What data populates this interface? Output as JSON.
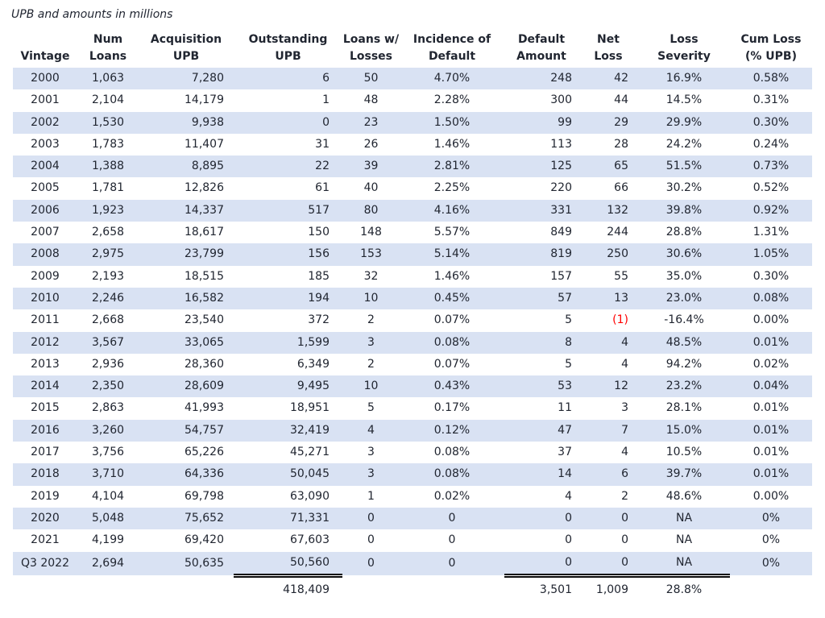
{
  "title": "UPB and amounts in millions",
  "colors": {
    "band": "#d9e2f3",
    "text": "#212631",
    "negative_value": "#ff0000"
  },
  "chart_data": {
    "type": "table",
    "columns": [
      "Vintage",
      "Num\nLoans",
      "Acquisition\nUPB",
      "Outstanding\nUPB",
      "Loans w/\nLosses",
      "Incidence of\nDefault",
      "Default\nAmount",
      "Net\nLoss",
      "Loss\nSeverity",
      "Cum Loss\n(% UPB)"
    ],
    "column_aligns": [
      "center",
      "center",
      "right",
      "right",
      "center",
      "center",
      "right",
      "right",
      "center",
      "center"
    ],
    "rows": [
      [
        "2000",
        "1,063",
        "7,280",
        "6",
        "50",
        "4.70%",
        "248",
        "42",
        "16.9%",
        "0.58%"
      ],
      [
        "2001",
        "2,104",
        "14,179",
        "1",
        "48",
        "2.28%",
        "300",
        "44",
        "14.5%",
        "0.31%"
      ],
      [
        "2002",
        "1,530",
        "9,938",
        "0",
        "23",
        "1.50%",
        "99",
        "29",
        "29.9%",
        "0.30%"
      ],
      [
        "2003",
        "1,783",
        "11,407",
        "31",
        "26",
        "1.46%",
        "113",
        "28",
        "24.2%",
        "0.24%"
      ],
      [
        "2004",
        "1,388",
        "8,895",
        "22",
        "39",
        "2.81%",
        "125",
        "65",
        "51.5%",
        "0.73%"
      ],
      [
        "2005",
        "1,781",
        "12,826",
        "61",
        "40",
        "2.25%",
        "220",
        "66",
        "30.2%",
        "0.52%"
      ],
      [
        "2006",
        "1,923",
        "14,337",
        "517",
        "80",
        "4.16%",
        "331",
        "132",
        "39.8%",
        "0.92%"
      ],
      [
        "2007",
        "2,658",
        "18,617",
        "150",
        "148",
        "5.57%",
        "849",
        "244",
        "28.8%",
        "1.31%"
      ],
      [
        "2008",
        "2,975",
        "23,799",
        "156",
        "153",
        "5.14%",
        "819",
        "250",
        "30.6%",
        "1.05%"
      ],
      [
        "2009",
        "2,193",
        "18,515",
        "185",
        "32",
        "1.46%",
        "157",
        "55",
        "35.0%",
        "0.30%"
      ],
      [
        "2010",
        "2,246",
        "16,582",
        "194",
        "10",
        "0.45%",
        "57",
        "13",
        "23.0%",
        "0.08%"
      ],
      [
        "2011",
        "2,668",
        "23,540",
        "372",
        "2",
        "0.07%",
        "5",
        "(1)",
        "-16.4%",
        "0.00%"
      ],
      [
        "2012",
        "3,567",
        "33,065",
        "1,599",
        "3",
        "0.08%",
        "8",
        "4",
        "48.5%",
        "0.01%"
      ],
      [
        "2013",
        "2,936",
        "28,360",
        "6,349",
        "2",
        "0.07%",
        "5",
        "4",
        "94.2%",
        "0.02%"
      ],
      [
        "2014",
        "2,350",
        "28,609",
        "9,495",
        "10",
        "0.43%",
        "53",
        "12",
        "23.2%",
        "0.04%"
      ],
      [
        "2015",
        "2,863",
        "41,993",
        "18,951",
        "5",
        "0.17%",
        "11",
        "3",
        "28.1%",
        "0.01%"
      ],
      [
        "2016",
        "3,260",
        "54,757",
        "32,419",
        "4",
        "0.12%",
        "47",
        "7",
        "15.0%",
        "0.01%"
      ],
      [
        "2017",
        "3,756",
        "65,226",
        "45,271",
        "3",
        "0.08%",
        "37",
        "4",
        "10.5%",
        "0.01%"
      ],
      [
        "2018",
        "3,710",
        "64,336",
        "50,045",
        "3",
        "0.08%",
        "14",
        "6",
        "39.7%",
        "0.01%"
      ],
      [
        "2019",
        "4,104",
        "69,798",
        "63,090",
        "1",
        "0.02%",
        "4",
        "2",
        "48.6%",
        "0.00%"
      ],
      [
        "2020",
        "5,048",
        "75,652",
        "71,331",
        "0",
        "0",
        "0",
        "0",
        "NA",
        "0%"
      ],
      [
        "2021",
        "4,199",
        "69,420",
        "67,603",
        "0",
        "0",
        "0",
        "0",
        "NA",
        "0%"
      ],
      [
        "Q3 2022",
        "2,694",
        "50,635",
        "50,560",
        "0",
        "0",
        "0",
        "0",
        "NA",
        "0%"
      ]
    ],
    "negative_values": [
      "(1)"
    ],
    "underline_after_last_row_columns": [
      3,
      6,
      7,
      8
    ],
    "totals_row": [
      "",
      "",
      "",
      "418,409",
      "",
      "",
      "3,501",
      "1,009",
      "28.8%",
      ""
    ],
    "row_banding": "alternating light-blue bands starting at first data row (2000)"
  }
}
